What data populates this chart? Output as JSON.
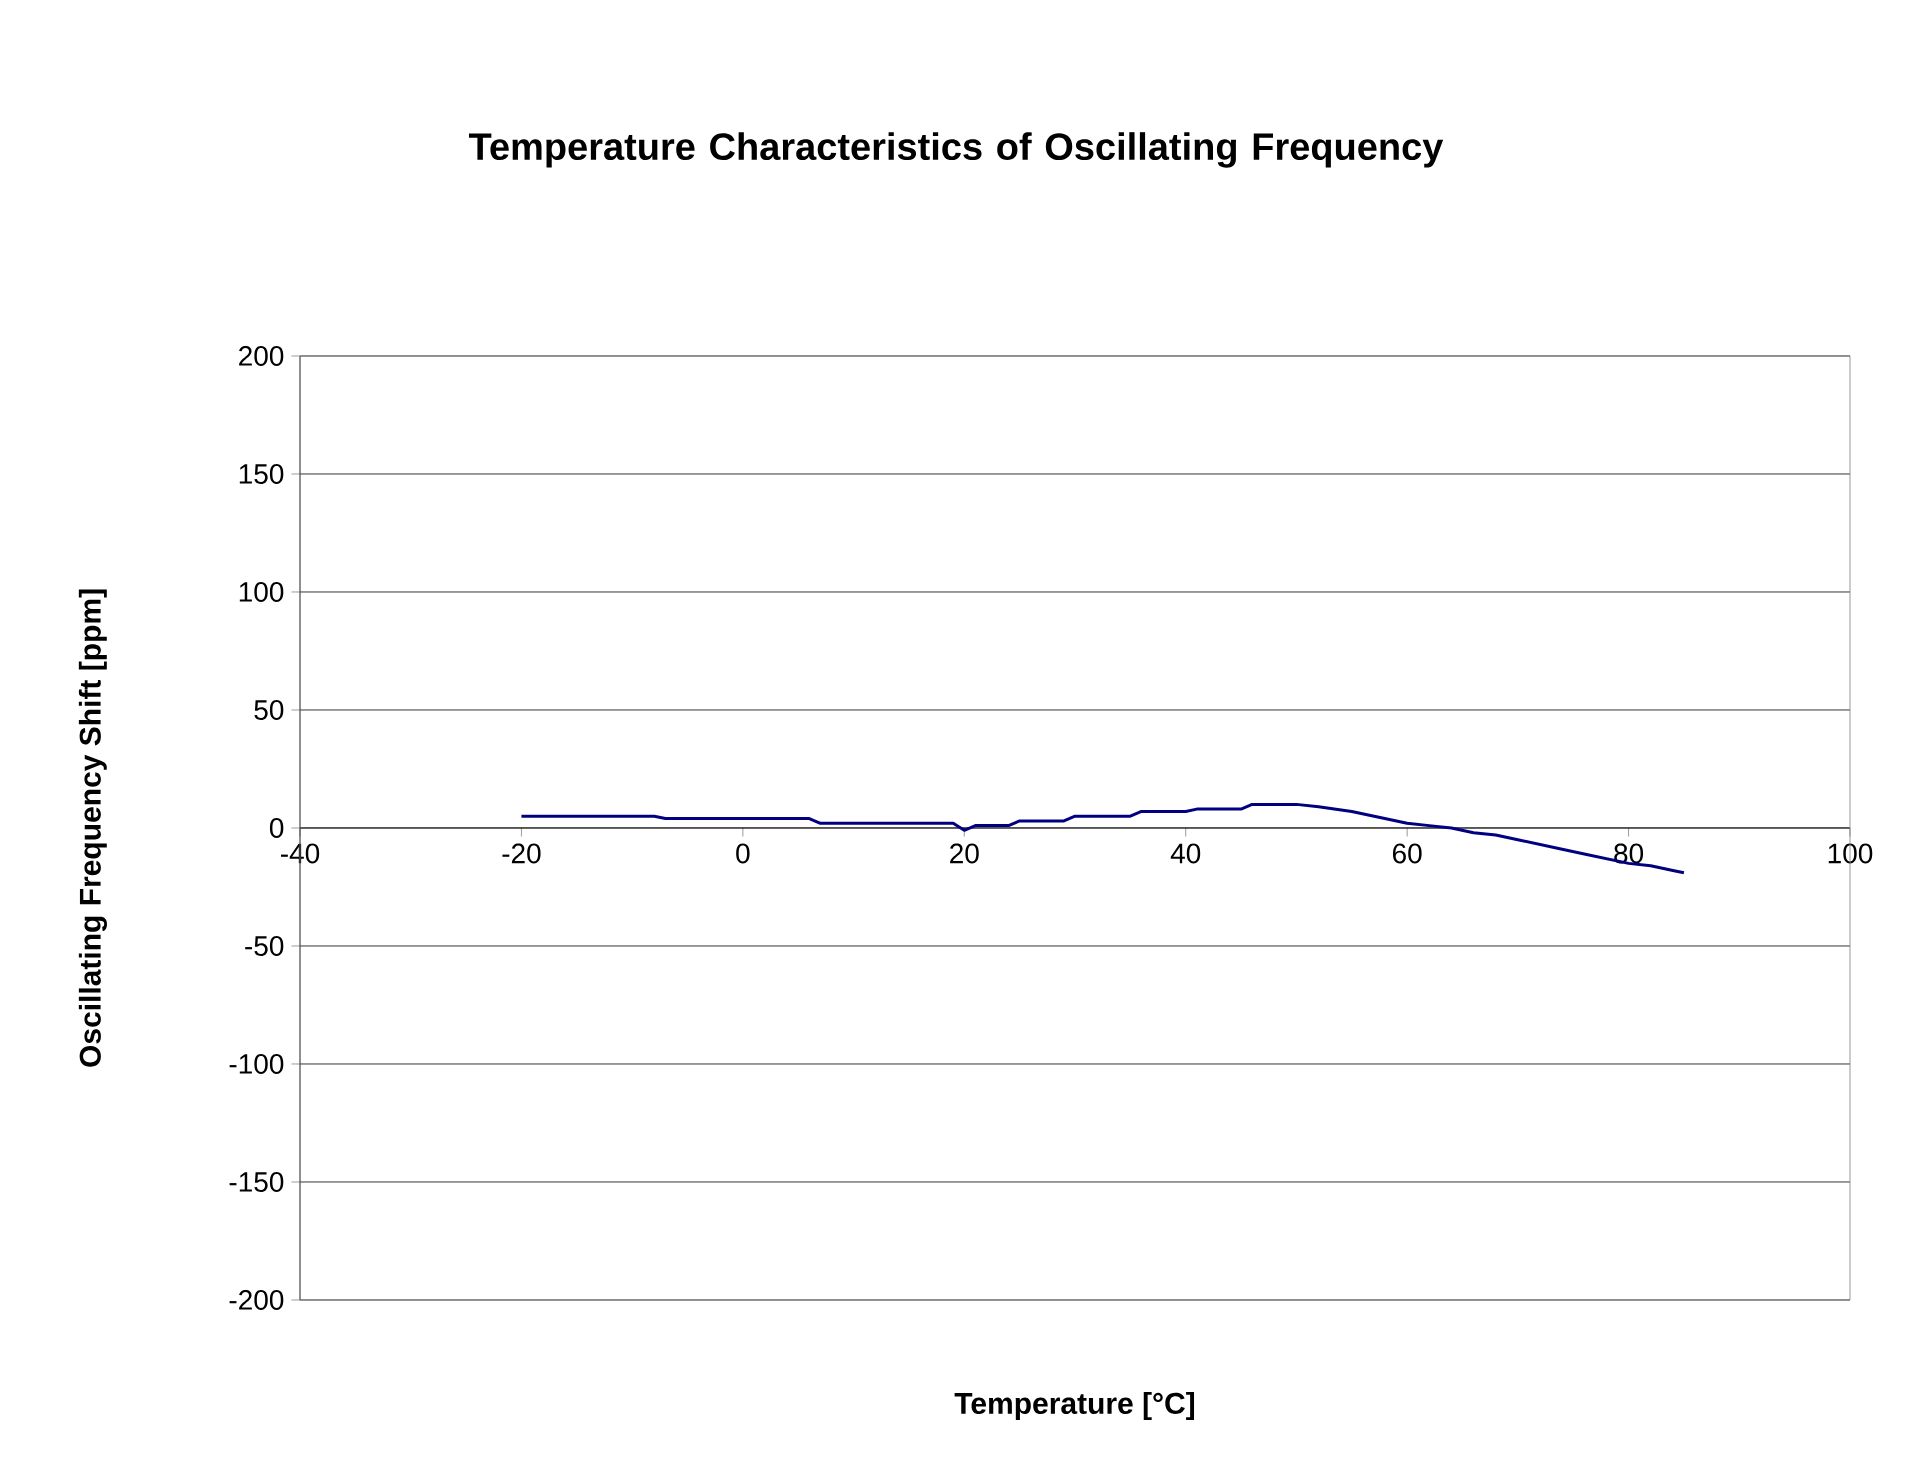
{
  "chart_data": {
    "type": "line",
    "title": "Temperature Characteristics of Oscillating Frequency",
    "xlabel": "Temperature [°C]",
    "ylabel": "Oscillating Frequency Shift [ppm]",
    "x": [
      -20,
      -8,
      -7,
      6,
      7,
      19,
      20,
      21,
      24,
      25,
      29,
      30,
      35,
      36,
      40,
      41,
      45,
      46,
      50,
      52,
      55,
      58,
      60,
      62,
      64,
      66,
      68,
      70,
      72,
      74,
      76,
      78,
      80,
      82,
      84,
      85
    ],
    "series": [
      {
        "color": "#000080",
        "values": [
          5,
          5,
          4,
          4,
          2,
          2,
          -1,
          1,
          1,
          3,
          3,
          5,
          5,
          7,
          7,
          8,
          8,
          10,
          10,
          9,
          7,
          4,
          2,
          1,
          0,
          -2,
          -3,
          -5,
          -7,
          -9,
          -11,
          -13,
          -15,
          -16,
          -18,
          -19
        ]
      }
    ],
    "xlim": [
      -40,
      100
    ],
    "xticks": [
      -40,
      -20,
      0,
      20,
      40,
      60,
      80,
      100
    ],
    "ylim": [
      -200,
      200
    ],
    "yticks": [
      -200,
      -150,
      -100,
      -50,
      0,
      50,
      100,
      150,
      200
    ],
    "grid": "y",
    "marker": "none",
    "line_style": "solid"
  }
}
